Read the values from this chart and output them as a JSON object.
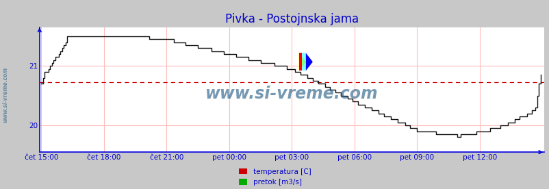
{
  "title": "Pivka - Postojnska jama",
  "title_color": "#0000cc",
  "title_fontsize": 12,
  "bg_color": "#c8c8c8",
  "plot_bg_color": "#ffffff",
  "grid_color": "#ffbbbb",
  "axis_color": "#0000dd",
  "tick_color": "#0000cc",
  "watermark": "www.si-vreme.com",
  "watermark_color": "#1a5580",
  "x_labels": [
    "čet 15:00",
    "čet 18:00",
    "čet 21:00",
    "pet 00:00",
    "pet 03:00",
    "pet 06:00",
    "pet 09:00",
    "pet 12:00"
  ],
  "x_tick_pos": [
    0,
    36,
    72,
    108,
    144,
    180,
    216,
    252
  ],
  "y_ticks": [
    20,
    21
  ],
  "ylim": [
    19.55,
    21.65
  ],
  "xlim": [
    -1,
    289
  ],
  "avg_line_y": 20.73,
  "avg_line_color": "#cc0000",
  "line_color": "#111111",
  "line_width": 1.0,
  "legend_labels": [
    "temperatura [C]",
    "pretok [m3/s]"
  ],
  "legend_colors": [
    "#cc0000",
    "#00aa00"
  ],
  "n_points": 288
}
